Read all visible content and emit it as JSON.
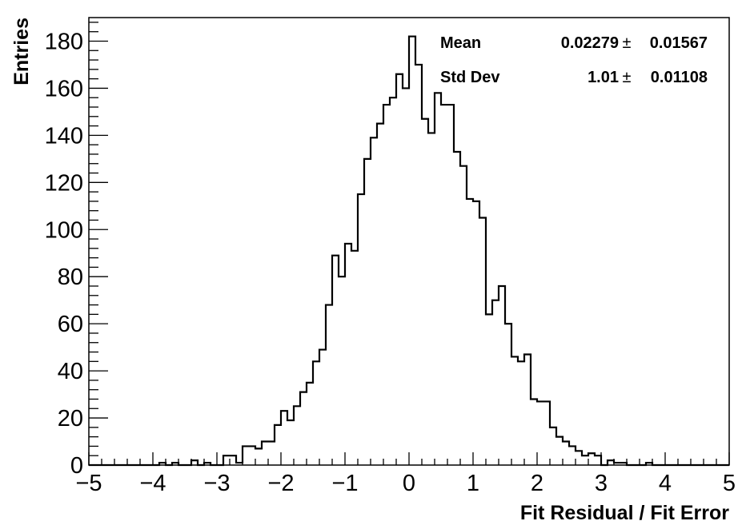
{
  "chart_data": {
    "type": "histogram",
    "xlabel": "Fit Residual / Fit Error",
    "ylabel": "Entries",
    "xlim": [
      -5,
      5
    ],
    "ylim": [
      0,
      190
    ],
    "bin_width": 0.1,
    "x_ticks": [
      -5,
      -4,
      -3,
      -2,
      -1,
      0,
      1,
      2,
      3,
      4,
      5
    ],
    "x_tick_labels": [
      "−5",
      "−4",
      "−3",
      "−2",
      "−1",
      "0",
      "1",
      "2",
      "3",
      "4",
      "5"
    ],
    "y_ticks": [
      0,
      20,
      40,
      60,
      80,
      100,
      120,
      140,
      160,
      180
    ],
    "y_tick_labels": [
      "0",
      "20",
      "40",
      "60",
      "80",
      "100",
      "120",
      "140",
      "160",
      "180"
    ],
    "grid": false,
    "color": "#000000",
    "bin_edges_start": -5,
    "values": [
      0,
      0,
      0,
      0,
      0,
      0,
      0,
      0,
      0,
      0,
      0,
      1,
      0,
      1,
      0,
      0,
      2,
      0,
      1,
      0,
      0,
      4,
      4,
      1,
      8,
      8,
      7,
      10,
      10,
      17,
      23,
      19,
      25,
      31,
      35,
      44,
      49,
      68,
      89,
      80,
      94,
      91,
      115,
      130,
      139,
      145,
      153,
      156,
      166,
      160,
      182,
      170,
      147,
      141,
      158,
      153,
      153,
      133,
      127,
      113,
      112,
      105,
      64,
      70,
      76,
      60,
      46,
      44,
      47,
      28,
      27,
      27,
      16,
      12,
      10,
      8,
      6,
      4,
      5,
      4,
      0,
      2,
      1,
      1,
      0,
      0,
      0,
      1,
      0,
      0,
      0,
      0,
      0,
      0,
      0,
      0,
      0,
      0,
      0,
      0
    ],
    "stats": [
      {
        "label": "Mean",
        "value": "0.02279",
        "pm": "±",
        "error": "0.01567"
      },
      {
        "label": "Std Dev",
        "value": "1.01",
        "pm": "±",
        "error": "0.01108"
      }
    ]
  }
}
